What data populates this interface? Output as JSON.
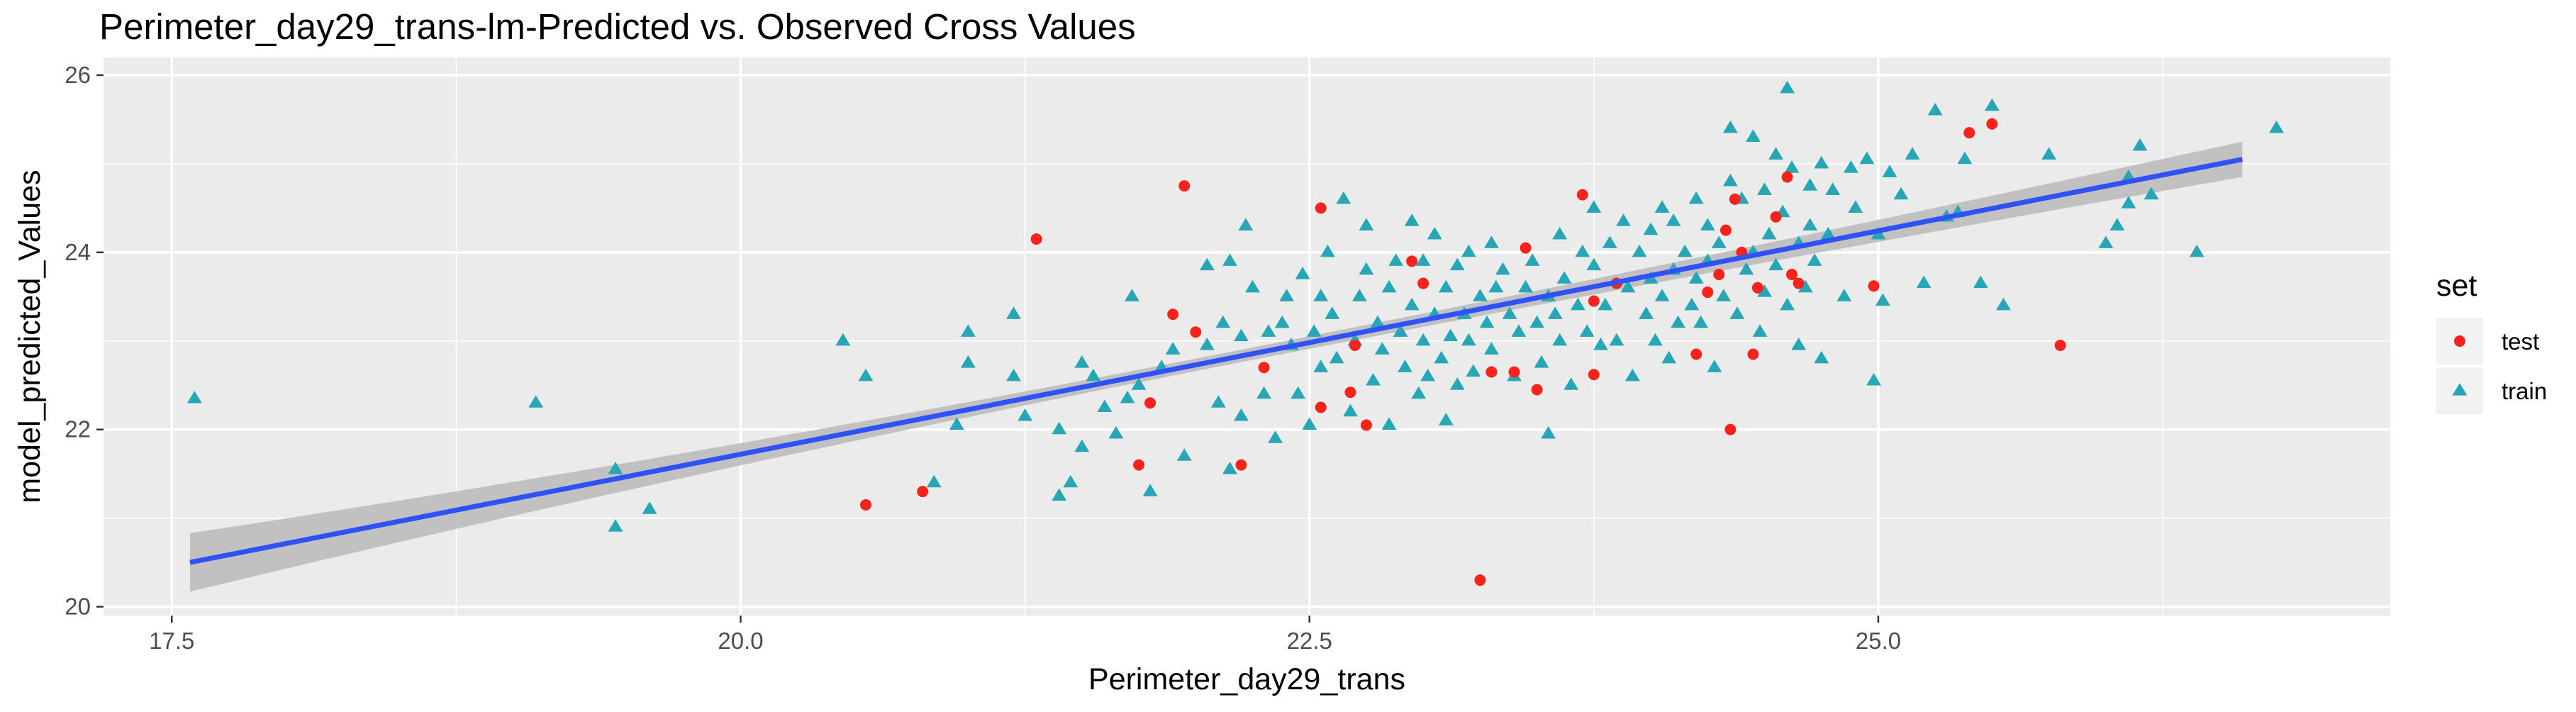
{
  "chart_data": {
    "type": "scatter",
    "title": "Perimeter_day29_trans-lm-Predicted vs. Observed Cross Values",
    "xlabel": "Perimeter_day29_trans",
    "ylabel": "model_predicted_Values",
    "xlim": [
      17.2,
      27.25
    ],
    "ylim": [
      19.9,
      26.2
    ],
    "x_ticks": [
      17.5,
      20.0,
      22.5,
      25.0
    ],
    "x_tick_labels": [
      "17.5",
      "20.0",
      "22.5",
      "25.0"
    ],
    "y_ticks": [
      20,
      22,
      24,
      26
    ],
    "y_tick_labels": [
      "20",
      "22",
      "24",
      "26"
    ],
    "grid": true,
    "legend": {
      "title": "set",
      "position": "right",
      "entries": [
        {
          "label": "test",
          "shape": "circle",
          "color": "#F8231A"
        },
        {
          "label": "train",
          "shape": "triangle",
          "color": "#27A7B6"
        }
      ]
    },
    "fit_line": {
      "method": "lm",
      "color": "#3050F8",
      "band_color": "#BFBFBF",
      "points": [
        [
          17.58,
          20.5
        ],
        [
          26.6,
          25.05
        ]
      ],
      "band_halfwidth_at_ends": [
        0.33,
        0.2
      ],
      "band_halfwidth_at_center": 0.07
    },
    "series": [
      {
        "name": "test",
        "shape": "circle",
        "color": "#F8231A",
        "points": [
          [
            20.55,
            21.15
          ],
          [
            20.8,
            21.3
          ],
          [
            21.3,
            24.15
          ],
          [
            21.75,
            21.6
          ],
          [
            21.8,
            22.3
          ],
          [
            21.9,
            23.3
          ],
          [
            21.95,
            24.75
          ],
          [
            22.0,
            23.1
          ],
          [
            22.2,
            21.6
          ],
          [
            22.3,
            22.7
          ],
          [
            22.55,
            24.5
          ],
          [
            22.55,
            22.25
          ],
          [
            22.68,
            22.42
          ],
          [
            22.7,
            22.95
          ],
          [
            22.75,
            22.05
          ],
          [
            22.95,
            23.9
          ],
          [
            23.0,
            23.65
          ],
          [
            23.25,
            20.3
          ],
          [
            23.3,
            22.65
          ],
          [
            23.4,
            22.65
          ],
          [
            23.45,
            24.05
          ],
          [
            23.5,
            22.45
          ],
          [
            23.7,
            24.65
          ],
          [
            23.75,
            23.45
          ],
          [
            23.75,
            22.62
          ],
          [
            23.85,
            23.65
          ],
          [
            24.2,
            22.85
          ],
          [
            24.25,
            23.55
          ],
          [
            24.3,
            23.75
          ],
          [
            24.33,
            24.25
          ],
          [
            24.35,
            22.0
          ],
          [
            24.37,
            24.6
          ],
          [
            24.4,
            24.0
          ],
          [
            24.45,
            22.85
          ],
          [
            24.47,
            23.6
          ],
          [
            24.55,
            24.4
          ],
          [
            24.6,
            24.85
          ],
          [
            24.62,
            23.75
          ],
          [
            24.65,
            23.65
          ],
          [
            24.98,
            23.62
          ],
          [
            25.4,
            25.35
          ],
          [
            25.5,
            25.45
          ],
          [
            25.8,
            22.95
          ]
        ]
      },
      {
        "name": "train",
        "shape": "triangle",
        "color": "#27A7B6",
        "points": [
          [
            17.6,
            22.35
          ],
          [
            19.1,
            22.3
          ],
          [
            19.45,
            21.55
          ],
          [
            19.45,
            20.9
          ],
          [
            19.6,
            21.1
          ],
          [
            20.45,
            23.0
          ],
          [
            20.55,
            22.6
          ],
          [
            20.85,
            21.4
          ],
          [
            20.95,
            22.05
          ],
          [
            21.0,
            23.1
          ],
          [
            21.0,
            22.75
          ],
          [
            21.2,
            23.3
          ],
          [
            21.2,
            22.6
          ],
          [
            21.25,
            22.15
          ],
          [
            21.4,
            21.25
          ],
          [
            21.4,
            22.0
          ],
          [
            21.45,
            21.4
          ],
          [
            21.5,
            21.8
          ],
          [
            21.5,
            22.75
          ],
          [
            21.55,
            22.6
          ],
          [
            21.6,
            22.25
          ],
          [
            21.65,
            21.95
          ],
          [
            21.7,
            22.35
          ],
          [
            21.72,
            23.5
          ],
          [
            21.75,
            22.5
          ],
          [
            21.8,
            21.3
          ],
          [
            21.85,
            22.7
          ],
          [
            21.9,
            22.9
          ],
          [
            21.95,
            21.7
          ],
          [
            22.05,
            22.95
          ],
          [
            22.05,
            23.85
          ],
          [
            22.1,
            22.3
          ],
          [
            22.12,
            23.2
          ],
          [
            22.15,
            21.55
          ],
          [
            22.15,
            23.9
          ],
          [
            22.2,
            22.15
          ],
          [
            22.2,
            23.05
          ],
          [
            22.22,
            24.3
          ],
          [
            22.25,
            23.6
          ],
          [
            22.3,
            22.4
          ],
          [
            22.32,
            23.1
          ],
          [
            22.35,
            21.9
          ],
          [
            22.38,
            23.2
          ],
          [
            22.4,
            23.5
          ],
          [
            22.42,
            22.95
          ],
          [
            22.45,
            22.4
          ],
          [
            22.47,
            23.75
          ],
          [
            22.5,
            22.05
          ],
          [
            22.52,
            23.1
          ],
          [
            22.55,
            23.5
          ],
          [
            22.55,
            22.7
          ],
          [
            22.58,
            24.0
          ],
          [
            22.6,
            23.3
          ],
          [
            22.62,
            22.8
          ],
          [
            22.65,
            24.6
          ],
          [
            22.68,
            22.2
          ],
          [
            22.7,
            23.0
          ],
          [
            22.72,
            23.5
          ],
          [
            22.75,
            23.8
          ],
          [
            22.75,
            24.3
          ],
          [
            22.78,
            22.55
          ],
          [
            22.8,
            23.2
          ],
          [
            22.82,
            22.9
          ],
          [
            22.85,
            23.6
          ],
          [
            22.85,
            22.05
          ],
          [
            22.88,
            23.9
          ],
          [
            22.9,
            23.1
          ],
          [
            22.92,
            22.7
          ],
          [
            22.95,
            24.35
          ],
          [
            22.95,
            23.4
          ],
          [
            22.98,
            22.4
          ],
          [
            23.0,
            23.0
          ],
          [
            23.0,
            23.9
          ],
          [
            23.02,
            22.6
          ],
          [
            23.05,
            23.3
          ],
          [
            23.05,
            24.2
          ],
          [
            23.08,
            22.8
          ],
          [
            23.1,
            23.6
          ],
          [
            23.1,
            22.1
          ],
          [
            23.12,
            23.05
          ],
          [
            23.15,
            23.85
          ],
          [
            23.15,
            22.5
          ],
          [
            23.18,
            23.3
          ],
          [
            23.2,
            23.0
          ],
          [
            23.2,
            24.0
          ],
          [
            23.22,
            22.65
          ],
          [
            23.25,
            23.5
          ],
          [
            23.28,
            23.2
          ],
          [
            23.3,
            24.1
          ],
          [
            23.3,
            22.9
          ],
          [
            23.32,
            23.6
          ],
          [
            23.35,
            23.8
          ],
          [
            23.38,
            23.3
          ],
          [
            23.4,
            22.6
          ],
          [
            23.42,
            23.1
          ],
          [
            23.45,
            23.6
          ],
          [
            23.48,
            23.9
          ],
          [
            23.5,
            23.2
          ],
          [
            23.52,
            22.75
          ],
          [
            23.55,
            23.5
          ],
          [
            23.55,
            21.95
          ],
          [
            23.58,
            23.3
          ],
          [
            23.6,
            24.2
          ],
          [
            23.6,
            23.0
          ],
          [
            23.62,
            23.7
          ],
          [
            23.65,
            22.5
          ],
          [
            23.68,
            23.4
          ],
          [
            23.7,
            24.0
          ],
          [
            23.72,
            23.1
          ],
          [
            23.75,
            23.85
          ],
          [
            23.75,
            24.5
          ],
          [
            23.78,
            22.95
          ],
          [
            23.8,
            23.4
          ],
          [
            23.82,
            24.1
          ],
          [
            23.85,
            23.0
          ],
          [
            23.88,
            24.35
          ],
          [
            23.9,
            23.6
          ],
          [
            23.92,
            22.6
          ],
          [
            23.95,
            24.0
          ],
          [
            23.98,
            23.3
          ],
          [
            24.0,
            24.25
          ],
          [
            24.0,
            23.7
          ],
          [
            24.02,
            23.0
          ],
          [
            24.05,
            24.5
          ],
          [
            24.05,
            23.5
          ],
          [
            24.08,
            22.8
          ],
          [
            24.1,
            24.35
          ],
          [
            24.1,
            23.8
          ],
          [
            24.12,
            23.2
          ],
          [
            24.15,
            24.0
          ],
          [
            24.18,
            23.4
          ],
          [
            24.2,
            24.6
          ],
          [
            24.2,
            23.7
          ],
          [
            24.22,
            23.2
          ],
          [
            24.25,
            24.3
          ],
          [
            24.25,
            23.9
          ],
          [
            24.28,
            22.7
          ],
          [
            24.3,
            24.1
          ],
          [
            24.32,
            23.5
          ],
          [
            24.35,
            25.4
          ],
          [
            24.35,
            24.8
          ],
          [
            24.38,
            23.3
          ],
          [
            24.4,
            24.6
          ],
          [
            24.42,
            23.8
          ],
          [
            24.45,
            25.3
          ],
          [
            24.45,
            24.0
          ],
          [
            24.48,
            23.1
          ],
          [
            24.5,
            24.7
          ],
          [
            24.5,
            23.55
          ],
          [
            24.52,
            24.2
          ],
          [
            24.55,
            25.1
          ],
          [
            24.55,
            23.85
          ],
          [
            24.58,
            24.45
          ],
          [
            24.6,
            25.85
          ],
          [
            24.6,
            23.4
          ],
          [
            24.62,
            24.95
          ],
          [
            24.65,
            24.1
          ],
          [
            24.65,
            22.95
          ],
          [
            24.68,
            23.6
          ],
          [
            24.7,
            24.75
          ],
          [
            24.7,
            24.3
          ],
          [
            24.72,
            23.9
          ],
          [
            24.75,
            25.0
          ],
          [
            24.75,
            22.8
          ],
          [
            24.78,
            24.2
          ],
          [
            24.8,
            24.7
          ],
          [
            24.85,
            23.5
          ],
          [
            24.88,
            24.95
          ],
          [
            24.9,
            24.5
          ],
          [
            24.95,
            25.05
          ],
          [
            24.98,
            22.55
          ],
          [
            25.0,
            24.2
          ],
          [
            25.02,
            23.45
          ],
          [
            25.05,
            24.9
          ],
          [
            25.1,
            24.65
          ],
          [
            25.15,
            25.1
          ],
          [
            25.2,
            23.65
          ],
          [
            25.25,
            25.6
          ],
          [
            25.3,
            24.4
          ],
          [
            25.35,
            24.45
          ],
          [
            25.38,
            25.05
          ],
          [
            25.45,
            23.65
          ],
          [
            25.5,
            25.65
          ],
          [
            25.55,
            23.4
          ],
          [
            25.75,
            25.1
          ],
          [
            26.0,
            24.1
          ],
          [
            26.05,
            24.3
          ],
          [
            26.1,
            24.55
          ],
          [
            26.1,
            24.85
          ],
          [
            26.15,
            25.2
          ],
          [
            26.2,
            24.65
          ],
          [
            26.4,
            24.0
          ],
          [
            26.75,
            25.4
          ]
        ]
      }
    ]
  }
}
